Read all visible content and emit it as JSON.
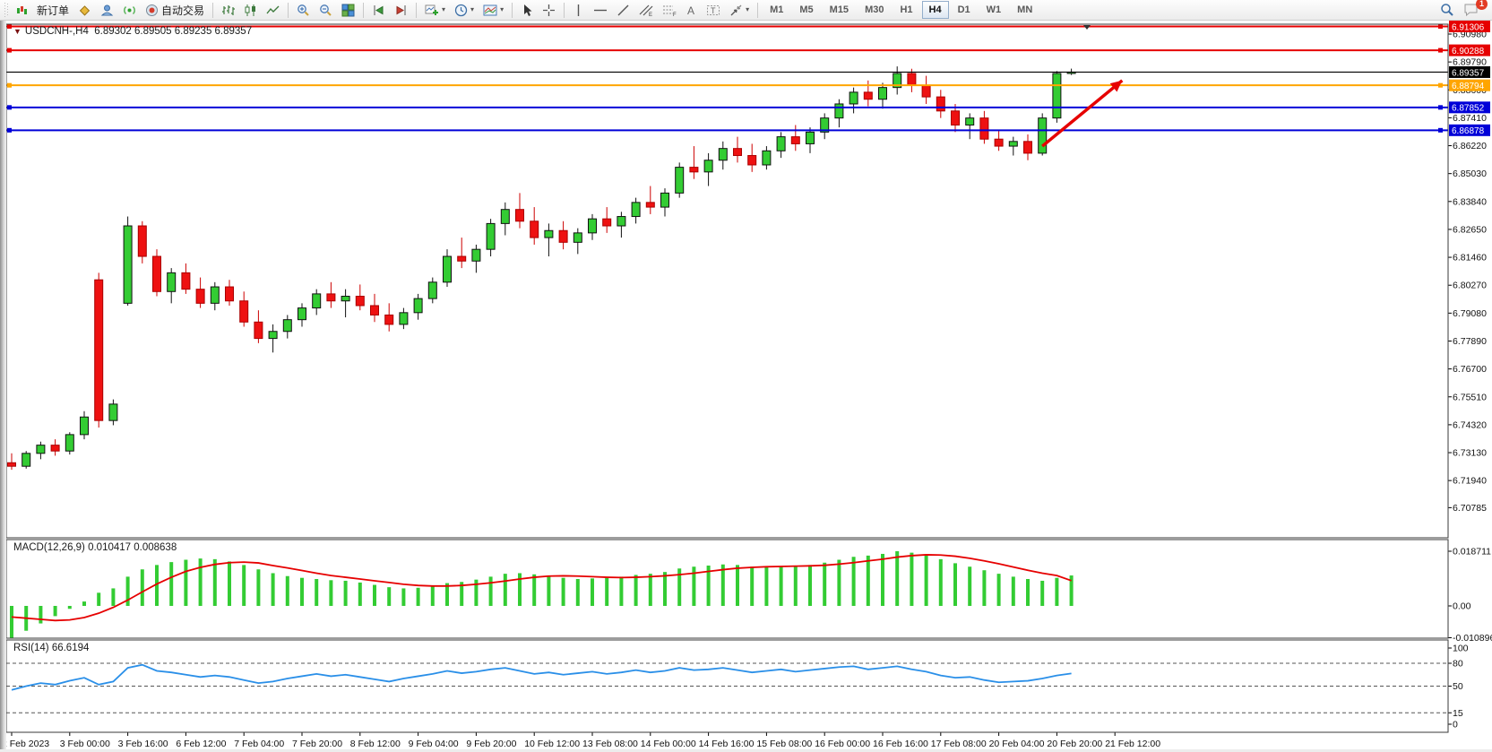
{
  "toolbar": {
    "new_order_label": "新订单",
    "autotrading_label": "自动交易",
    "timeframes": [
      "M1",
      "M5",
      "M15",
      "M30",
      "H1",
      "H4",
      "D1",
      "W1",
      "MN"
    ],
    "active_timeframe": "H4",
    "notification_badge": "1"
  },
  "chart_data": {
    "type": "candlestick",
    "title_symbol": "USDCNH-,H4",
    "title_ohlc": "6.89302 6.89505 6.89235 6.89357",
    "up_color": "#33cc33",
    "down_color": "#ee1111",
    "price_ticks": [
      "6.90980",
      "6.89790",
      "6.88600",
      "6.87410",
      "6.86220",
      "6.85030",
      "6.83840",
      "6.82650",
      "6.81460",
      "6.80270",
      "6.79080",
      "6.77890",
      "6.76700",
      "6.75510",
      "6.74320",
      "6.73130",
      "6.71940",
      "6.70785"
    ],
    "price_levels": [
      {
        "price": 6.91306,
        "label": "6.91306",
        "color": "#e60000",
        "kind": "line"
      },
      {
        "price": 6.90288,
        "label": "6.90288",
        "color": "#e60000",
        "kind": "line"
      },
      {
        "price": 6.89357,
        "label": "6.89357",
        "color": "#000000",
        "kind": "bid"
      },
      {
        "price": 6.88794,
        "label": "6.88794",
        "color": "#ffa500",
        "kind": "line"
      },
      {
        "price": 6.87852,
        "label": "6.87852",
        "color": "#0000d8",
        "kind": "line"
      },
      {
        "price": 6.86878,
        "label": "6.86878",
        "color": "#0000d8",
        "kind": "line"
      }
    ],
    "x_labels": [
      "2 Feb 2023",
      "3 Feb 00:00",
      "3 Feb 16:00",
      "6 Feb 12:00",
      "7 Feb 04:00",
      "7 Feb 20:00",
      "8 Feb 12:00",
      "9 Feb 04:00",
      "9 Feb 20:00",
      "10 Feb 12:00",
      "13 Feb 08:00",
      "14 Feb 00:00",
      "14 Feb 16:00",
      "15 Feb 08:00",
      "16 Feb 00:00",
      "16 Feb 16:00",
      "17 Feb 08:00",
      "20 Feb 04:00",
      "20 Feb 20:00",
      "21 Feb 12:00"
    ],
    "bars_per_label": 4,
    "candles": {
      "open": [
        6.727,
        6.7255,
        6.731,
        6.7345,
        6.732,
        6.739,
        6.805,
        6.745,
        6.795,
        6.828,
        6.815,
        6.8,
        6.808,
        6.801,
        6.795,
        6.802,
        6.796,
        6.787,
        6.78,
        6.783,
        6.788,
        6.793,
        6.799,
        6.796,
        6.798,
        6.794,
        6.79,
        6.786,
        6.791,
        6.797,
        6.804,
        6.815,
        6.813,
        6.818,
        6.829,
        6.835,
        6.83,
        6.823,
        6.826,
        6.821,
        6.825,
        6.831,
        6.828,
        6.832,
        6.838,
        6.836,
        6.842,
        6.853,
        6.851,
        6.856,
        6.861,
        6.858,
        6.854,
        6.86,
        6.866,
        6.863,
        6.868,
        6.874,
        6.88,
        6.885,
        6.882,
        6.887,
        6.893,
        6.888,
        6.883,
        6.877,
        6.871,
        6.874,
        6.865,
        6.862,
        6.864,
        6.859,
        6.874,
        6.89302
      ],
      "high": [
        6.731,
        6.732,
        6.736,
        6.737,
        6.74,
        6.749,
        6.808,
        6.754,
        6.832,
        6.83,
        6.818,
        6.81,
        6.812,
        6.806,
        6.804,
        6.805,
        6.8,
        6.792,
        6.786,
        6.79,
        6.795,
        6.801,
        6.804,
        6.801,
        6.803,
        6.799,
        6.795,
        6.793,
        6.799,
        6.806,
        6.818,
        6.823,
        6.82,
        6.831,
        6.838,
        6.842,
        6.836,
        6.829,
        6.83,
        6.827,
        6.833,
        6.836,
        6.834,
        6.84,
        6.845,
        6.844,
        6.855,
        6.862,
        6.859,
        6.864,
        6.866,
        6.863,
        6.862,
        6.868,
        6.871,
        6.87,
        6.876,
        6.882,
        6.887,
        6.89,
        6.889,
        6.896,
        6.895,
        6.892,
        6.886,
        6.88,
        6.876,
        6.877,
        6.869,
        6.866,
        6.867,
        6.876,
        6.894,
        6.89505
      ],
      "low": [
        6.724,
        6.7245,
        6.7285,
        6.73,
        6.7305,
        6.737,
        6.742,
        6.743,
        6.794,
        6.812,
        6.798,
        6.795,
        6.799,
        6.793,
        6.792,
        6.794,
        6.785,
        6.778,
        6.774,
        6.78,
        6.785,
        6.79,
        6.793,
        6.789,
        6.792,
        6.787,
        6.783,
        6.784,
        6.788,
        6.795,
        6.802,
        6.81,
        6.808,
        6.815,
        6.824,
        6.827,
        6.82,
        6.815,
        6.818,
        6.816,
        6.822,
        6.825,
        6.823,
        6.829,
        6.833,
        6.832,
        6.84,
        6.848,
        6.845,
        6.852,
        6.855,
        6.851,
        6.852,
        6.857,
        6.86,
        6.859,
        6.865,
        6.87,
        6.876,
        6.879,
        6.878,
        6.884,
        6.885,
        6.88,
        6.874,
        6.868,
        6.865,
        6.863,
        6.86,
        6.858,
        6.856,
        6.858,
        6.872,
        6.89235
      ],
      "close": [
        6.7255,
        6.731,
        6.7345,
        6.732,
        6.739,
        6.7465,
        6.745,
        6.752,
        6.828,
        6.815,
        6.8,
        6.808,
        6.801,
        6.795,
        6.802,
        6.796,
        6.787,
        6.78,
        6.783,
        6.788,
        6.793,
        6.799,
        6.796,
        6.798,
        6.794,
        6.79,
        6.786,
        6.791,
        6.797,
        6.804,
        6.815,
        6.813,
        6.818,
        6.829,
        6.835,
        6.83,
        6.823,
        6.826,
        6.821,
        6.825,
        6.831,
        6.828,
        6.832,
        6.838,
        6.836,
        6.842,
        6.853,
        6.851,
        6.856,
        6.861,
        6.858,
        6.854,
        6.86,
        6.866,
        6.863,
        6.868,
        6.874,
        6.88,
        6.885,
        6.882,
        6.887,
        6.893,
        6.888,
        6.883,
        6.877,
        6.871,
        6.874,
        6.865,
        6.862,
        6.864,
        6.859,
        6.874,
        6.893,
        6.89357
      ]
    },
    "macd": {
      "label": "MACD(12,26,9) 0.010417 0.008638",
      "ticks": [
        "0.018711",
        "0.00",
        "-0.010896"
      ],
      "histogram_color": "#33cc33",
      "signal_color": "#e60000",
      "histogram": [
        -0.0109,
        -0.0085,
        -0.006,
        -0.0035,
        -0.001,
        0.0015,
        0.0045,
        0.006,
        0.01,
        0.0125,
        0.014,
        0.015,
        0.0158,
        0.0162,
        0.016,
        0.0152,
        0.014,
        0.0125,
        0.0112,
        0.0102,
        0.0096,
        0.0092,
        0.0088,
        0.0086,
        0.008,
        0.0072,
        0.0064,
        0.006,
        0.0062,
        0.0068,
        0.0078,
        0.0082,
        0.009,
        0.01,
        0.011,
        0.0112,
        0.0108,
        0.0102,
        0.0096,
        0.0092,
        0.0094,
        0.0096,
        0.01,
        0.0106,
        0.011,
        0.0116,
        0.0128,
        0.0134,
        0.0138,
        0.0142,
        0.014,
        0.0134,
        0.0132,
        0.0136,
        0.0138,
        0.014,
        0.0148,
        0.0158,
        0.0168,
        0.0172,
        0.0178,
        0.0187,
        0.0182,
        0.0172,
        0.016,
        0.0146,
        0.0134,
        0.0122,
        0.011,
        0.01,
        0.0092,
        0.0086,
        0.0096,
        0.010417
      ],
      "signal": [
        -0.0038,
        -0.0042,
        -0.0046,
        -0.005,
        -0.0048,
        -0.004,
        -0.0025,
        -0.0005,
        0.002,
        0.0048,
        0.0075,
        0.0098,
        0.0118,
        0.0132,
        0.0142,
        0.0148,
        0.015,
        0.0147,
        0.0138,
        0.013,
        0.0121,
        0.0112,
        0.0104,
        0.0098,
        0.0092,
        0.0086,
        0.008,
        0.0074,
        0.007,
        0.0068,
        0.0068,
        0.007,
        0.0074,
        0.0079,
        0.0085,
        0.0092,
        0.0098,
        0.0102,
        0.0103,
        0.0102,
        0.01,
        0.0098,
        0.0097,
        0.0098,
        0.01,
        0.0103,
        0.0107,
        0.0112,
        0.0118,
        0.0124,
        0.0129,
        0.0132,
        0.0134,
        0.0135,
        0.0136,
        0.0137,
        0.0139,
        0.0143,
        0.0148,
        0.0154,
        0.016,
        0.0167,
        0.0172,
        0.0175,
        0.0174,
        0.017,
        0.0163,
        0.0154,
        0.0144,
        0.0133,
        0.0122,
        0.0112,
        0.0104,
        0.008638
      ]
    },
    "rsi": {
      "label": "RSI(14) 66.6194",
      "ticks": [
        "100",
        "80",
        "50",
        "15",
        "0"
      ],
      "levels": [
        80,
        50,
        15
      ],
      "line_color": "#2a8fe8",
      "values": [
        45,
        50,
        54,
        52,
        57,
        61,
        52,
        56,
        74,
        78,
        70,
        68,
        65,
        62,
        64,
        62,
        58,
        54,
        56,
        60,
        63,
        66,
        63,
        65,
        62,
        59,
        56,
        60,
        63,
        66,
        70,
        67,
        69,
        72,
        74,
        70,
        66,
        68,
        65,
        67,
        69,
        66,
        68,
        71,
        68,
        70,
        74,
        71,
        72,
        74,
        71,
        68,
        70,
        72,
        69,
        71,
        73,
        75,
        76,
        72,
        74,
        76,
        72,
        69,
        64,
        61,
        62,
        58,
        55,
        56,
        57,
        60,
        64,
        66.6194
      ]
    },
    "annotation_arrow": {
      "bar_from": 71,
      "price_from": 6.862,
      "bar_to": 76.5,
      "price_to": 6.89,
      "color": "#e60000"
    }
  }
}
